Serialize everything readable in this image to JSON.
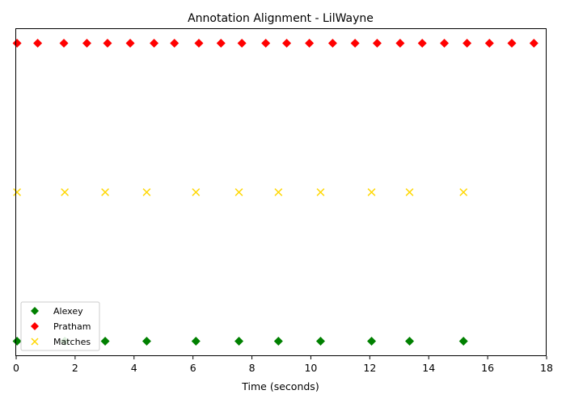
{
  "chart_data": {
    "type": "scatter",
    "title": "Annotation Alignment - LilWayne",
    "xlabel": "Time (seconds)",
    "ylabel": "",
    "xlim": [
      0,
      18
    ],
    "ylim": [
      -0.1,
      2.1
    ],
    "xticks": [
      0,
      2,
      4,
      6,
      8,
      10,
      12,
      14,
      16,
      18
    ],
    "yticks_visible": false,
    "grid": false,
    "legend_position": "lower-left",
    "series": [
      {
        "name": "Alexey",
        "marker": "diamond",
        "color": "#008000",
        "y": 0,
        "x": [
          0.03,
          1.65,
          3.02,
          4.43,
          6.1,
          7.56,
          8.9,
          10.33,
          12.06,
          13.35,
          15.18
        ]
      },
      {
        "name": "Pratham",
        "marker": "diamond",
        "color": "#ff0000",
        "y": 2,
        "x": [
          0.03,
          0.73,
          1.62,
          2.4,
          3.1,
          3.87,
          4.68,
          5.37,
          6.2,
          6.95,
          7.66,
          8.47,
          9.18,
          9.95,
          10.74,
          11.5,
          12.25,
          13.03,
          13.78,
          14.53,
          15.3,
          16.06,
          16.82,
          17.57
        ]
      },
      {
        "name": "Matches",
        "marker": "x",
        "color": "#ffd700",
        "y": 1,
        "x": [
          0.03,
          1.65,
          3.02,
          4.43,
          6.1,
          7.56,
          8.9,
          10.33,
          12.06,
          13.35,
          15.18
        ]
      }
    ]
  }
}
